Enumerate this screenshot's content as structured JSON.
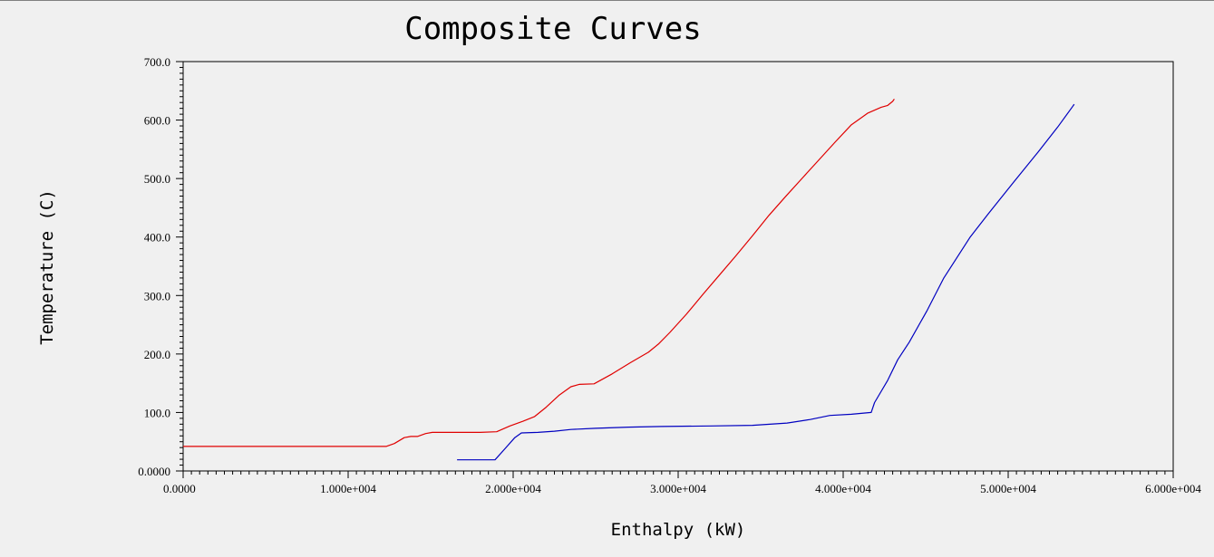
{
  "chart_data": {
    "type": "line",
    "title": "Composite Curves",
    "xlabel": "Enthalpy (kW)",
    "ylabel": "Temperature (C)",
    "xlim": [
      0,
      60000
    ],
    "ylim": [
      0,
      700
    ],
    "x_ticks": [
      {
        "value": 0,
        "label": "0.0000"
      },
      {
        "value": 10000,
        "label": "1.000e+004"
      },
      {
        "value": 20000,
        "label": "2.000e+004"
      },
      {
        "value": 30000,
        "label": "3.000e+004"
      },
      {
        "value": 40000,
        "label": "4.000e+004"
      },
      {
        "value": 50000,
        "label": "5.000e+004"
      },
      {
        "value": 60000,
        "label": "6.000e+004"
      }
    ],
    "y_ticks": [
      {
        "value": 0,
        "label": "0.0000"
      },
      {
        "value": 100,
        "label": "100.0"
      },
      {
        "value": 200,
        "label": "200.0"
      },
      {
        "value": 300,
        "label": "300.0"
      },
      {
        "value": 400,
        "label": "400.0"
      },
      {
        "value": 500,
        "label": "500.0"
      },
      {
        "value": 600,
        "label": "600.0"
      },
      {
        "value": 700,
        "label": "700.0"
      }
    ],
    "grid": false,
    "legend": "none",
    "series": [
      {
        "color": "#e00000",
        "points": [
          [
            0,
            42
          ],
          [
            12300,
            42
          ],
          [
            12800,
            47
          ],
          [
            13400,
            57
          ],
          [
            13800,
            59
          ],
          [
            14200,
            59
          ],
          [
            14700,
            64
          ],
          [
            15100,
            66
          ],
          [
            16500,
            66
          ],
          [
            18000,
            66
          ],
          [
            19000,
            67
          ],
          [
            19800,
            77
          ],
          [
            20600,
            85
          ],
          [
            21300,
            93
          ],
          [
            22000,
            109
          ],
          [
            22800,
            130
          ],
          [
            23500,
            144
          ],
          [
            24000,
            148
          ],
          [
            24900,
            149
          ],
          [
            26000,
            166
          ],
          [
            27100,
            185
          ],
          [
            28200,
            203
          ],
          [
            28800,
            217
          ],
          [
            29500,
            237
          ],
          [
            30500,
            268
          ],
          [
            31500,
            302
          ],
          [
            32500,
            335
          ],
          [
            33500,
            368
          ],
          [
            34500,
            402
          ],
          [
            35500,
            437
          ],
          [
            36500,
            469
          ],
          [
            37500,
            500
          ],
          [
            38500,
            531
          ],
          [
            39500,
            562
          ],
          [
            40500,
            592
          ],
          [
            41500,
            612
          ],
          [
            42300,
            622
          ],
          [
            42700,
            625
          ],
          [
            43000,
            632
          ],
          [
            43100,
            636
          ]
        ]
      },
      {
        "color": "#0000c0",
        "points": [
          [
            16600,
            19
          ],
          [
            17500,
            19
          ],
          [
            18900,
            19
          ],
          [
            19500,
            38
          ],
          [
            20100,
            57
          ],
          [
            20500,
            65
          ],
          [
            21500,
            66
          ],
          [
            22500,
            68
          ],
          [
            23500,
            71
          ],
          [
            25000,
            73
          ],
          [
            27000,
            75
          ],
          [
            29000,
            76
          ],
          [
            32000,
            77
          ],
          [
            34500,
            78
          ],
          [
            36600,
            82
          ],
          [
            38000,
            88
          ],
          [
            39200,
            95
          ],
          [
            40500,
            97
          ],
          [
            41700,
            100
          ],
          [
            41900,
            117
          ],
          [
            42700,
            155
          ],
          [
            43300,
            190
          ],
          [
            44000,
            220
          ],
          [
            45100,
            275
          ],
          [
            46100,
            330
          ],
          [
            47700,
            400
          ],
          [
            48800,
            440
          ],
          [
            50300,
            493
          ],
          [
            51800,
            545
          ],
          [
            53000,
            588
          ],
          [
            53900,
            623
          ],
          [
            54000,
            627
          ]
        ]
      }
    ]
  }
}
